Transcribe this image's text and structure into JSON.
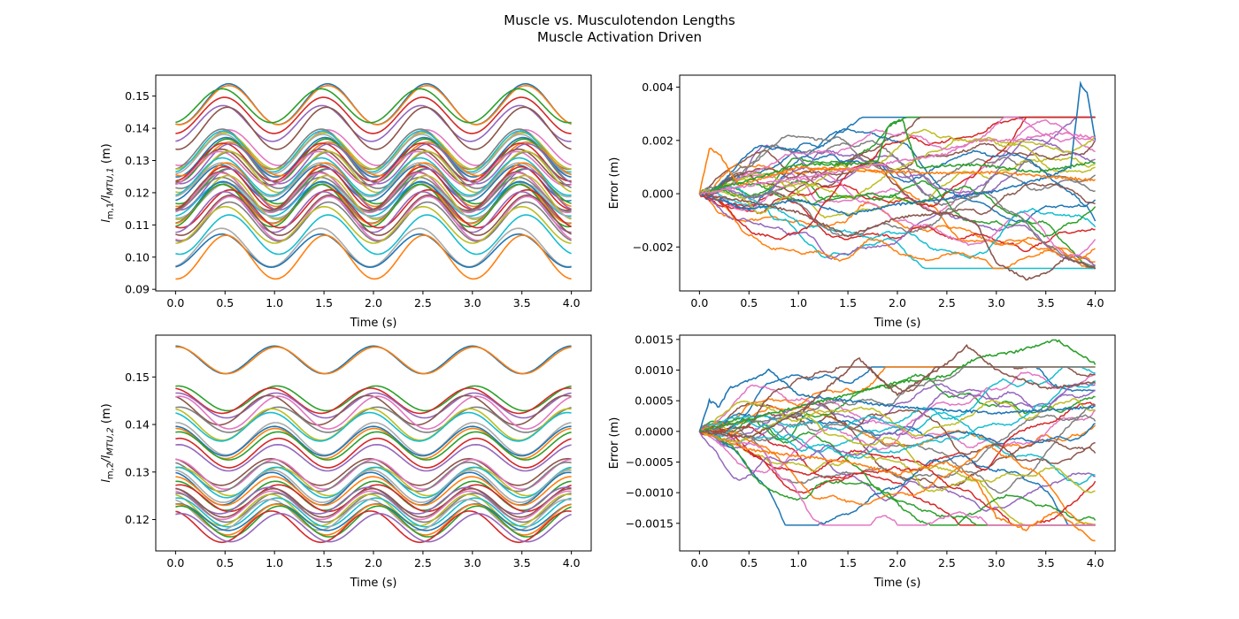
{
  "figure": {
    "title_line1": "Muscle vs. Musculotendon Lengths",
    "title_line2": "Muscle Activation Driven"
  },
  "chart_data": [
    {
      "type": "line",
      "id": "ratio-1",
      "xlabel": "Time (s)",
      "ylabel": {
        "main": "l",
        "sub1": "m,1",
        "mid": "/l",
        "sub2": "MTU,1",
        "unit": " (m)"
      },
      "xlim": [
        -0.2,
        4.2
      ],
      "ylim": [
        0.0895,
        0.1565
      ],
      "xticks": [
        "0.0",
        "0.5",
        "1.0",
        "1.5",
        "2.0",
        "2.5",
        "3.0",
        "3.5",
        "4.0"
      ],
      "yticks": [
        "0.09",
        "0.10",
        "0.11",
        "0.12",
        "0.13",
        "0.14",
        "0.15"
      ],
      "wave": {
        "amplitude": 0.006,
        "frequency_hz": 1,
        "phase": "minimum at 0, 1, 2, 3, 4 s"
      },
      "series_means": [
        0.1475,
        0.1472,
        0.147,
        0.144,
        0.1415,
        0.14,
        0.134,
        0.1335,
        0.133,
        0.1328,
        0.132,
        0.131,
        0.1305,
        0.13,
        0.1295,
        0.129,
        0.128,
        0.1275,
        0.127,
        0.1265,
        0.125,
        0.124,
        0.123,
        0.1225,
        0.122,
        0.1215,
        0.121,
        0.1205,
        0.12,
        0.1195,
        0.1185,
        0.118,
        0.1175,
        0.117,
        0.1165,
        0.116,
        0.115,
        0.114,
        0.113,
        0.112,
        0.111,
        0.11,
        0.107,
        0.103,
        0.102,
        0.1
      ]
    },
    {
      "type": "line",
      "id": "error-1",
      "xlabel": "Time (s)",
      "ylabel": "Error (m)",
      "xlim": [
        -0.2,
        4.2
      ],
      "ylim": [
        -0.00365,
        0.00445
      ],
      "xticks": [
        "0.0",
        "0.5",
        "1.0",
        "1.5",
        "2.0",
        "2.5",
        "3.0",
        "3.5",
        "4.0"
      ],
      "yticks": [
        "−0.002",
        "0.000",
        "0.002",
        "0.004"
      ],
      "series_count": 34,
      "series_envelope": {
        "min": -0.0033,
        "max": 0.0041
      },
      "notable_series": [
        {
          "x": [
            0.0,
            0.5,
            1.0,
            1.5,
            2.0,
            2.5,
            3.0,
            3.5,
            3.75,
            3.85,
            3.92,
            4.0
          ],
          "y": [
            0.0,
            -0.0006,
            -0.0002,
            -0.0008,
            -0.0004,
            -0.0002,
            0.0001,
            0.0006,
            0.001,
            0.0041,
            0.0038,
            0.002
          ]
        },
        {
          "x": [
            0.0,
            0.1,
            0.2,
            0.4,
            1.0,
            2.0,
            3.0,
            4.0
          ],
          "y": [
            0.0,
            0.0017,
            0.0015,
            0.0003,
            0.001,
            0.0008,
            0.0008,
            0.0005
          ]
        },
        {
          "x": [
            0.0,
            0.5,
            1.0,
            1.5,
            1.8,
            1.9,
            2.05,
            2.2,
            2.8,
            3.4,
            4.0
          ],
          "y": [
            0.0,
            0.0005,
            0.0011,
            0.0011,
            0.0012,
            0.0025,
            0.0028,
            0.001,
            0.0011,
            0.0008,
            0.0012
          ]
        },
        {
          "x": [
            0.0,
            0.5,
            1.0,
            1.5,
            2.0,
            2.5,
            2.8,
            3.0,
            3.3,
            3.5,
            3.7,
            4.0
          ],
          "y": [
            0.0,
            -0.0003,
            -0.0007,
            -0.0016,
            -0.0009,
            -0.0007,
            -0.0011,
            -0.0026,
            -0.0032,
            -0.003,
            -0.0024,
            -0.0028
          ]
        },
        {
          "x": [
            0.0,
            0.5,
            1.0,
            1.5,
            2.0,
            2.5,
            2.8,
            3.2,
            3.6,
            4.0
          ],
          "y": [
            0.0,
            0.0003,
            0.0006,
            0.0009,
            0.0012,
            0.0015,
            0.002,
            0.002,
            0.0023,
            0.0021
          ]
        }
      ]
    },
    {
      "type": "line",
      "id": "ratio-2",
      "xlabel": "Time (s)",
      "ylabel": {
        "main": "l",
        "sub1": "m,2",
        "mid": "/l",
        "sub2": "MTU,2",
        "unit": " (m)"
      },
      "xlim": [
        -0.2,
        4.2
      ],
      "ylim": [
        0.1134,
        0.1588
      ],
      "xticks": [
        "0.0",
        "0.5",
        "1.0",
        "1.5",
        "2.0",
        "2.5",
        "3.0",
        "3.5",
        "4.0"
      ],
      "yticks": [
        "0.12",
        "0.13",
        "0.14",
        "0.15"
      ],
      "wave": {
        "amplitude": 0.003,
        "frequency_hz": 1,
        "phase": "maximum at 0, 1, 2, 3, 4 s"
      },
      "series_means": [
        0.1536,
        0.1535,
        0.1455,
        0.145,
        0.144,
        0.143,
        0.1425,
        0.141,
        0.14,
        0.1395,
        0.137,
        0.1365,
        0.136,
        0.1355,
        0.134,
        0.133,
        0.13,
        0.1295,
        0.129,
        0.128,
        0.1278,
        0.127,
        0.1265,
        0.126,
        0.125,
        0.1245,
        0.124,
        0.1235,
        0.123,
        0.1225,
        0.122,
        0.1215,
        0.121,
        0.1205,
        0.12,
        0.1196,
        0.1185,
        0.1183
      ]
    },
    {
      "type": "line",
      "id": "error-2",
      "xlabel": "Time (s)",
      "ylabel": "Error (m)",
      "xlim": [
        -0.2,
        4.2
      ],
      "ylim": [
        -0.00195,
        0.00157
      ],
      "xticks": [
        "0.0",
        "0.5",
        "1.0",
        "1.5",
        "2.0",
        "2.5",
        "3.0",
        "3.5",
        "4.0"
      ],
      "yticks": [
        "−0.0015",
        "−0.0010",
        "−0.0005",
        "0.0000",
        "0.0005",
        "0.0010",
        "0.0015"
      ],
      "series_count": 34,
      "series_envelope": {
        "min": -0.0018,
        "max": 0.0015
      },
      "notable_series": [
        {
          "x": [
            0.0,
            0.1,
            0.2,
            0.3,
            0.6,
            0.7,
            1.0,
            2.0,
            3.0,
            4.0
          ],
          "y": [
            0.0,
            0.0005,
            0.0004,
            0.0007,
            0.0009,
            0.001,
            0.0006,
            0.0004,
            0.0003,
            0.0004
          ]
        },
        {
          "x": [
            0.0,
            0.5,
            1.0,
            1.5,
            2.0,
            2.5,
            2.8,
            3.0,
            3.3,
            3.6,
            4.0
          ],
          "y": [
            0.0,
            -0.0003,
            -0.0004,
            -0.0005,
            -0.0007,
            -0.0005,
            -0.0008,
            -0.0014,
            -0.0016,
            -0.0013,
            -0.0018
          ]
        },
        {
          "x": [
            0.0,
            0.5,
            1.0,
            1.5,
            2.0,
            2.5,
            2.8,
            3.2,
            3.6,
            4.0
          ],
          "y": [
            0.0,
            0.0002,
            0.0004,
            0.0006,
            0.0008,
            0.0009,
            0.0012,
            0.0013,
            0.0015,
            0.0011
          ]
        },
        {
          "x": [
            0.0,
            0.5,
            1.0,
            1.5,
            1.6,
            2.0,
            2.5,
            2.7,
            3.0,
            3.5,
            4.0
          ],
          "y": [
            0.0,
            -0.0001,
            0.0003,
            0.001,
            0.0012,
            0.0006,
            0.0011,
            0.0014,
            0.001,
            0.0007,
            0.0008
          ]
        }
      ]
    }
  ]
}
